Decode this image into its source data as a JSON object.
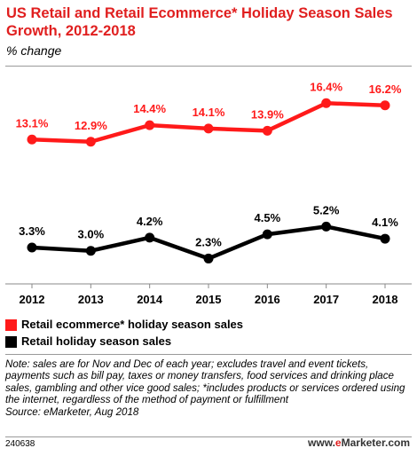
{
  "header": {
    "title": "US Retail and Retail Ecommerce* Holiday Season Sales Growth, 2012-2018",
    "subtitle": "% change"
  },
  "colors": {
    "accent": "#e01f1f",
    "ecommerce_series": "#ff1a1a",
    "retail_series": "#000000",
    "rule": "#9a9a9a"
  },
  "chart_data": {
    "type": "line",
    "title": "US Retail and Retail Ecommerce* Holiday Season Sales Growth, 2012-2018",
    "subtitle": "% change",
    "x": [
      "2012",
      "2013",
      "2014",
      "2015",
      "2016",
      "2017",
      "2018"
    ],
    "series": [
      {
        "name": "Retail ecommerce* holiday season sales",
        "values": [
          13.1,
          12.9,
          14.4,
          14.1,
          13.9,
          16.4,
          16.2
        ],
        "labels": [
          "13.1%",
          "12.9%",
          "14.4%",
          "14.1%",
          "13.9%",
          "16.4%",
          "16.2%"
        ]
      },
      {
        "name": "Retail holiday season sales",
        "values": [
          3.3,
          3.0,
          4.2,
          2.3,
          4.5,
          5.2,
          4.1
        ],
        "labels": [
          "3.3%",
          "3.0%",
          "4.2%",
          "2.3%",
          "4.5%",
          "5.2%",
          "4.1%"
        ]
      }
    ],
    "ylim": [
      0,
      19
    ],
    "grid": false,
    "legend_placement": "bottom-left"
  },
  "legend": {
    "items": [
      {
        "label": "Retail ecommerce* holiday season sales"
      },
      {
        "label": "Retail holiday season sales"
      }
    ]
  },
  "note": "Note: sales are for Nov and Dec of each year; excludes travel and event tickets, payments such as bill pay, taxes or money transfers, food services and drinking place sales, gambling and other vice good sales; *includes products or services ordered using the internet, regardless of the method of payment or fulfillment",
  "source": "Source: eMarketer, Aug 2018",
  "footer": {
    "chart_id": "240638",
    "brand_prefix": "www.",
    "brand_e": "e",
    "brand_rest": "Marketer",
    "brand_suffix": ".com"
  }
}
